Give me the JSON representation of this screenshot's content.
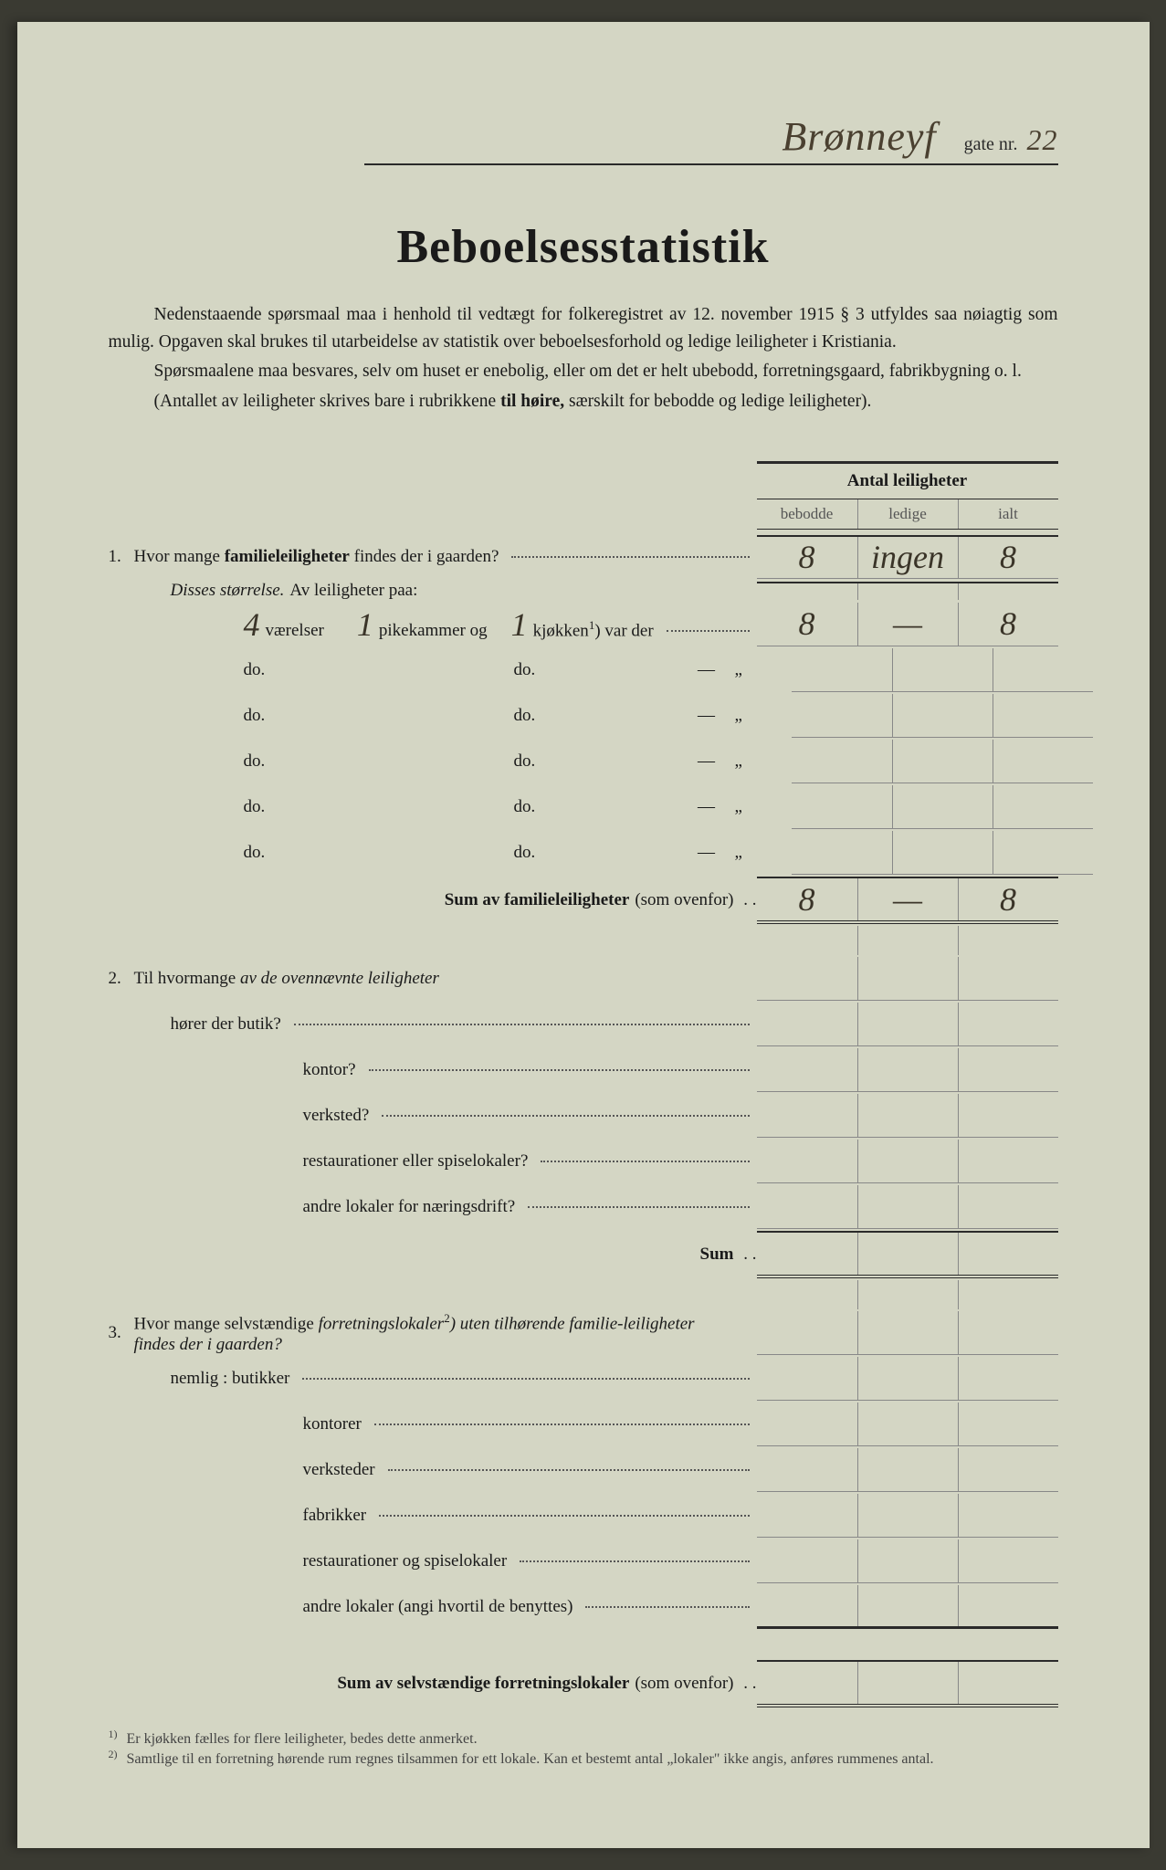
{
  "header": {
    "street_handwritten": "Brønneyf",
    "gate_label": "gate nr.",
    "gate_nr_handwritten": "22"
  },
  "title": "Beboelsesstatistik",
  "intro": {
    "p1": "Nedenstaaende spørsmaal maa i henhold til vedtægt for folkeregistret av 12. november 1915 § 3 utfyldes saa nøiagtig som mulig. Opgaven skal brukes til utarbeidelse av statistik over beboelsesforhold og ledige leiligheter i Kristiania.",
    "p2": "Spørsmaalene maa besvares, selv om huset er enebolig, eller om det er helt ubebodd, forretningsgaard, fabrikbygning o. l.",
    "p3_a": "(Antallet av leiligheter skrives bare i rubrikkene ",
    "p3_b": "til høire,",
    "p3_c": " særskilt for bebodde og ledige leiligheter)."
  },
  "table": {
    "heading": "Antal leiligheter",
    "cols": {
      "c1": "bebodde",
      "c2": "ledige",
      "c3": "ialt"
    }
  },
  "q1": {
    "num": "1.",
    "text_a": "Hvor mange ",
    "text_b": "familieleiligheter",
    "text_c": " findes der i gaarden?",
    "row_values": {
      "bebodde": "8",
      "ledige": "ingen",
      "ialt": "8"
    },
    "subtitle": {
      "a": "Disses størrelse.",
      "b": "  Av leiligheter paa:"
    },
    "size_row": {
      "vaerelser_hw": "4",
      "label_vaerelser": "værelser",
      "pikekammer_hw": "1",
      "label_pikekammer": "pikekammer og",
      "kjokken_hw": "1",
      "label_kjokken": "kjøkken",
      "sup": "1",
      "suffix": ") var der",
      "bebodde": "8",
      "ledige": "—",
      "ialt": "8"
    },
    "do_rows": [
      {
        "v": "do.",
        "p": "do.",
        "dash": "—",
        "quote": "„",
        "bebodde": "",
        "ledige": "",
        "ialt": ""
      },
      {
        "v": "do.",
        "p": "do.",
        "dash": "—",
        "quote": "„",
        "bebodde": "",
        "ledige": "",
        "ialt": ""
      },
      {
        "v": "do.",
        "p": "do.",
        "dash": "—",
        "quote": "„",
        "bebodde": "",
        "ledige": "",
        "ialt": ""
      },
      {
        "v": "do.",
        "p": "do.",
        "dash": "—",
        "quote": "„",
        "bebodde": "",
        "ledige": "",
        "ialt": ""
      },
      {
        "v": "do.",
        "p": "do.",
        "dash": "—",
        "quote": "„",
        "bebodde": "",
        "ledige": "",
        "ialt": ""
      }
    ],
    "sum_label": "Sum av familieleiligheter",
    "sum_suffix": " (som ovenfor)",
    "sum_values": {
      "bebodde": "8",
      "ledige": "—",
      "ialt": "8"
    }
  },
  "q2": {
    "num": "2.",
    "text_a": "Til hvormange ",
    "text_b": "av de ovennævnte leiligheter",
    "lines": [
      {
        "label": "hører der butik?",
        "indent": "indent1"
      },
      {
        "label": "kontor?",
        "indent": "indent3"
      },
      {
        "label": "verksted?",
        "indent": "indent3"
      },
      {
        "label": "restaurationer eller spiselokaler?",
        "indent": "indent3"
      },
      {
        "label": "andre lokaler for næringsdrift?",
        "indent": "indent3"
      }
    ],
    "sum_label": "Sum"
  },
  "q3": {
    "num": "3.",
    "text_a": "Hvor mange selvstændige ",
    "text_b": "forretningslokaler",
    "sup": "2",
    "text_c": ") uten tilhørende familie-leiligheter findes der i gaarden?",
    "lines": [
      {
        "label": "nemlig : butikker",
        "indent": "indent1"
      },
      {
        "label": "kontorer",
        "indent": "indent3"
      },
      {
        "label": "verksteder",
        "indent": "indent3"
      },
      {
        "label": "fabrikker",
        "indent": "indent3"
      },
      {
        "label": "restaurationer og spiselokaler",
        "indent": "indent3"
      },
      {
        "label": "andre lokaler (angi hvortil de benyttes)",
        "indent": "indent3"
      }
    ],
    "sum_label": "Sum av selvstændige forretningslokaler",
    "sum_suffix": " (som ovenfor)"
  },
  "footnotes": {
    "f1": {
      "sup": "1)",
      "text": "Er kjøkken fælles for flere leiligheter, bedes dette anmerket."
    },
    "f2": {
      "sup": "2)",
      "text": "Samtlige til en forretning hørende rum regnes tilsammen for ett lokale. Kan et bestemt antal „lokaler\" ikke angis, anføres rummenes antal."
    }
  },
  "colors": {
    "paper": "#d4d6c4",
    "ink": "#1a1a1a",
    "handwriting": "#3a3428",
    "border": "#2a2a2a"
  }
}
